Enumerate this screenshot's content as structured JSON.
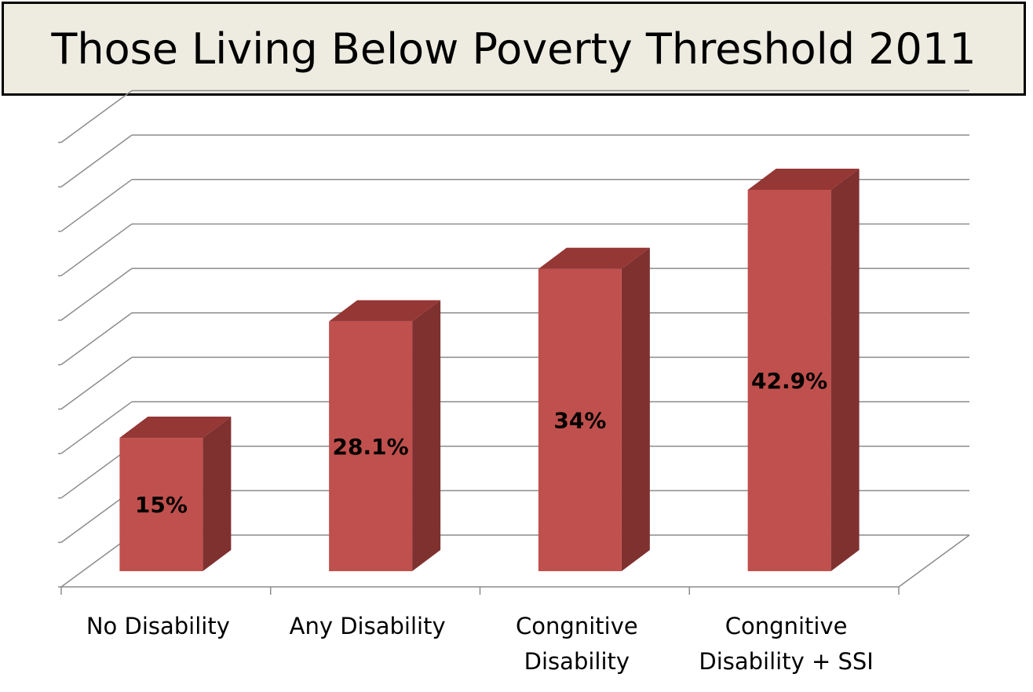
{
  "title": "Those Living Below Poverty Threshold 2011",
  "chart_data": {
    "type": "bar",
    "title": "Those Living Below Poverty Threshold 2011",
    "categories": [
      [
        "No Disability"
      ],
      [
        "Any Disability"
      ],
      [
        "Congnitive",
        "Disability"
      ],
      [
        "Congnitive",
        "Disability + SSI"
      ]
    ],
    "values": [
      15,
      28.1,
      34,
      42.9
    ],
    "data_labels": [
      "15%",
      "28.1%",
      "34%",
      "42.9%"
    ],
    "ylim": [
      0,
      50
    ],
    "ytick_step": 5,
    "grid": true,
    "three_d": true,
    "colors": {
      "bar_front": "#c0504d",
      "bar_top": "#953735",
      "bar_side": "#7f3130",
      "grid": "#8c8c8c",
      "title_bg": "#eeece1"
    }
  }
}
